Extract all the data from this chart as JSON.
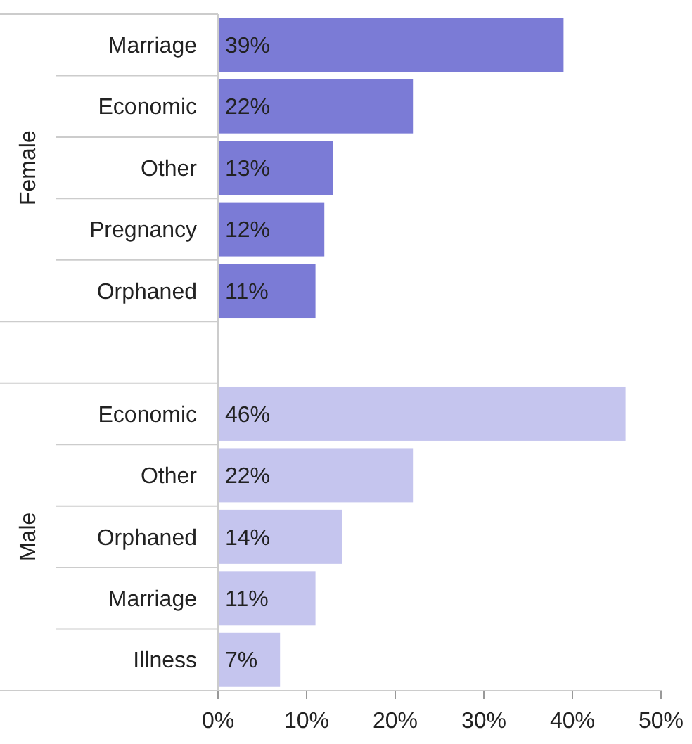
{
  "chart_data": {
    "type": "bar",
    "orientation": "horizontal",
    "categories": [
      "Marriage",
      "Economic",
      "Other",
      "Pregnancy",
      "Orphaned",
      null,
      "Economic",
      "Other",
      "Orphaned",
      "Marriage",
      "Illness"
    ],
    "series": [
      {
        "name": "Female",
        "color": "#7b7bd6",
        "values": [
          39,
          22,
          13,
          12,
          11,
          null,
          null,
          null,
          null,
          null,
          null
        ],
        "value_labels": [
          "39%",
          "22%",
          "13%",
          "12%",
          "11%",
          null,
          null,
          null,
          null,
          null,
          null
        ]
      },
      {
        "name": "Male",
        "color": "#c5c5ee",
        "values": [
          null,
          null,
          null,
          null,
          null,
          null,
          46,
          22,
          14,
          11,
          7
        ],
        "value_labels": [
          null,
          null,
          null,
          null,
          null,
          null,
          "46%",
          "22%",
          "14%",
          "11%",
          "7%"
        ]
      }
    ],
    "xlim": [
      0,
      50
    ],
    "xticks": [
      {
        "value": 0,
        "label": "0%"
      },
      {
        "value": 10,
        "label": "10%"
      },
      {
        "value": 20,
        "label": "20%"
      },
      {
        "value": 30,
        "label": "30%"
      },
      {
        "value": 40,
        "label": "40%"
      },
      {
        "value": 50,
        "label": "50%"
      }
    ],
    "grid": false,
    "legend": false
  }
}
